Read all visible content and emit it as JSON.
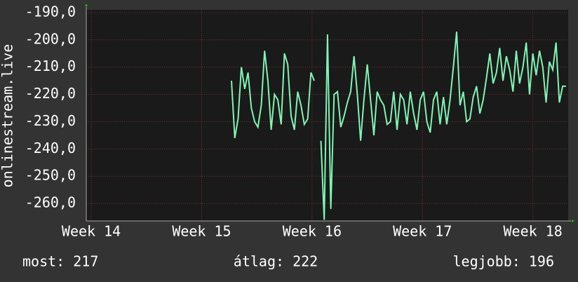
{
  "chart_data": {
    "type": "line",
    "y_label": "onlinestream.live",
    "x": [
      15.27,
      15.3,
      15.33,
      15.36,
      15.39,
      15.42,
      15.45,
      15.48,
      15.51,
      15.54,
      15.57,
      15.6,
      15.63,
      15.66,
      15.69,
      15.72,
      15.75,
      15.78,
      15.81,
      15.84,
      15.87,
      15.9,
      15.93,
      15.96,
      15.99,
      16.02,
      16.05,
      16.08,
      16.11,
      16.14,
      16.17,
      16.2,
      16.23,
      16.26,
      16.29,
      16.32,
      16.35,
      16.38,
      16.41,
      16.44,
      16.47,
      16.5,
      16.53,
      16.56,
      16.59,
      16.62,
      16.65,
      16.68,
      16.71,
      16.74,
      16.77,
      16.8,
      16.83,
      16.86,
      16.89,
      16.92,
      16.95,
      16.98,
      17.01,
      17.04,
      17.07,
      17.1,
      17.13,
      17.16,
      17.19,
      17.22,
      17.25,
      17.28,
      17.31,
      17.34,
      17.37,
      17.4,
      17.43,
      17.46,
      17.49,
      17.52,
      17.55,
      17.58,
      17.61,
      17.64,
      17.67,
      17.7,
      17.73,
      17.76,
      17.79,
      17.82,
      17.85,
      17.88,
      17.91,
      17.94,
      17.97,
      18.0,
      18.03,
      18.06,
      18.09,
      18.12,
      18.15,
      18.18,
      18.21,
      18.24,
      18.27,
      18.3
    ],
    "values": [
      -215,
      -236,
      -229,
      -210,
      -218,
      -212,
      -225,
      -230,
      -232,
      -224,
      -204,
      -215,
      -233,
      -220,
      -222,
      -231,
      -205,
      -209,
      -228,
      -233,
      -219,
      -224,
      -231,
      -229,
      -212,
      -215,
      null,
      -237,
      -266,
      -198,
      -262,
      -220,
      -219,
      -232,
      -228,
      -223,
      -219,
      -206,
      -220,
      -237,
      -222,
      -209,
      -222,
      -235,
      -219,
      -222,
      -224,
      -231,
      -230,
      -219,
      -233,
      -220,
      -222,
      -231,
      -219,
      -227,
      -233,
      -222,
      -219,
      -230,
      -234,
      -222,
      -219,
      -231,
      -221,
      -231,
      -222,
      -210,
      -197,
      -224,
      -219,
      -230,
      -229,
      -221,
      -217,
      -227,
      -222,
      -214,
      -205,
      -216,
      -212,
      -203,
      -215,
      -206,
      -211,
      -219,
      -204,
      -216,
      -210,
      -201,
      -220,
      -205,
      -213,
      -204,
      -210,
      -223,
      -208,
      -211,
      -201,
      -223,
      -217,
      -217
    ],
    "color": "#7ff5b4",
    "xlim": [
      13.955,
      18.32
    ],
    "xticks": [
      {
        "value": 14,
        "label": "Week 14"
      },
      {
        "value": 15,
        "label": "Week 15"
      },
      {
        "value": 16,
        "label": "Week 16"
      },
      {
        "value": 17,
        "label": "Week 17"
      },
      {
        "value": 18,
        "label": "Week 18"
      }
    ],
    "ylim": [
      -266.4,
      -189
    ],
    "yticks": [
      {
        "value": -190,
        "label": "-190,0"
      },
      {
        "value": -200,
        "label": "-200,0"
      },
      {
        "value": -210,
        "label": "-210,0"
      },
      {
        "value": -220,
        "label": "-220,0"
      },
      {
        "value": -230,
        "label": "-230,0"
      },
      {
        "value": -240,
        "label": "-240,0"
      },
      {
        "value": -250,
        "label": "-250,0"
      },
      {
        "value": -260,
        "label": "-260,0"
      }
    ],
    "grid": true,
    "footer": [
      "most: 217",
      "átlag: 222",
      "legjobb: 196"
    ]
  }
}
